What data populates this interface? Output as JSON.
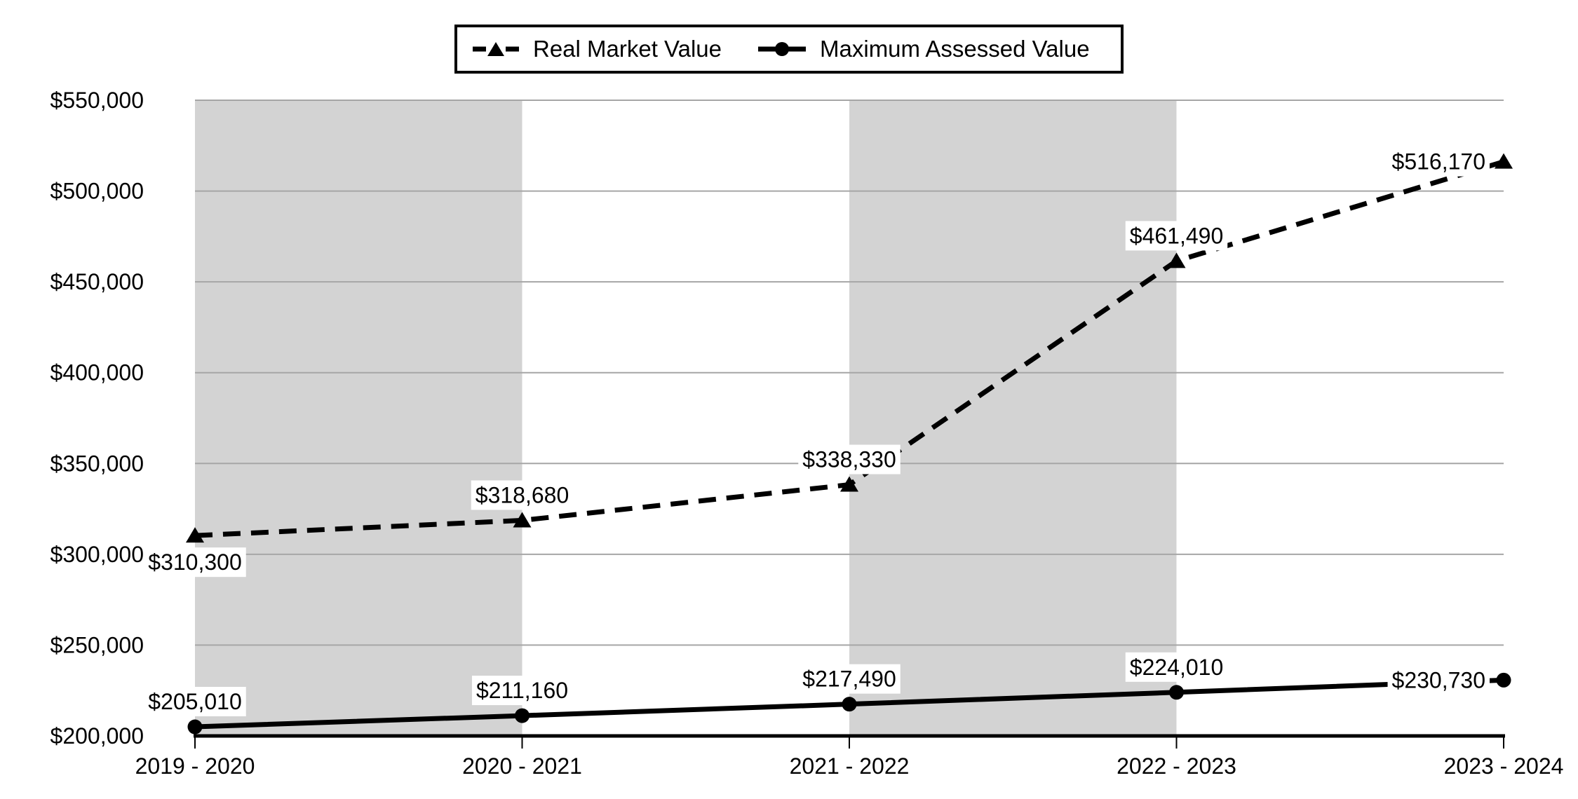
{
  "chart_data": {
    "type": "line",
    "title": "",
    "categories": [
      "2019 - 2020",
      "2020 - 2021",
      "2021 - 2022",
      "2022 - 2023",
      "2023 - 2024"
    ],
    "y_axis": {
      "min": 200000,
      "max": 550000,
      "tick_step": 50000
    },
    "y_ticks": [
      {
        "label": "$550,000",
        "value": 550000
      },
      {
        "label": "$500,000",
        "value": 500000
      },
      {
        "label": "$450,000",
        "value": 450000
      },
      {
        "label": "$400,000",
        "value": 400000
      },
      {
        "label": "$350,000",
        "value": 350000
      },
      {
        "label": "$300,000",
        "value": 300000
      },
      {
        "label": "$250,000",
        "value": 250000
      },
      {
        "label": "$200,000",
        "value": 200000
      }
    ],
    "series": [
      {
        "name": "Real Market Value",
        "line_style": "dashed",
        "marker": "triangle",
        "values": [
          310300,
          318680,
          338330,
          461490,
          516170
        ],
        "data_labels": [
          "$310,300",
          "$318,680",
          "$338,330",
          "$461,490",
          "$516,170"
        ],
        "label_placement": [
          "below",
          "above",
          "above",
          "above",
          "left"
        ]
      },
      {
        "name": "Maximum Assessed Value",
        "line_style": "solid",
        "marker": "circle",
        "values": [
          205010,
          211160,
          217490,
          224010,
          230730
        ],
        "data_labels": [
          "$205,010",
          "$211,160",
          "$217,490",
          "$224,010",
          "$230,730"
        ],
        "label_placement": [
          "above",
          "above",
          "above",
          "above",
          "left"
        ]
      }
    ],
    "shaded_column_intervals": [
      [
        0,
        1
      ],
      [
        2,
        3
      ]
    ],
    "legend_position": "top",
    "grid": true,
    "colors": {
      "series": "#000000",
      "gridline": "#a6a6a6",
      "band": "#d3d3d3",
      "axis": "#000000",
      "background": "#ffffff",
      "label_background": "#ffffff"
    }
  }
}
